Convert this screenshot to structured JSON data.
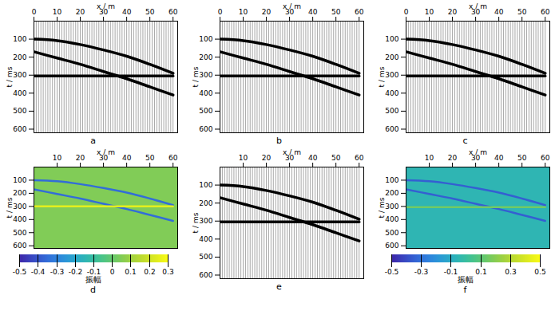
{
  "chart_data": [
    {
      "type": "line",
      "title": "a",
      "x_label": "x / m",
      "y_label": "t / ms",
      "xlim": [
        0,
        62
      ],
      "xticks": [
        0,
        10,
        20,
        30,
        40,
        50,
        60
      ],
      "ylim": [
        0,
        620
      ],
      "yticks": [
        100,
        200,
        300,
        400,
        500,
        600
      ],
      "traces": [
        0,
        1,
        2,
        3,
        4,
        5,
        6,
        7,
        8,
        9,
        10,
        11,
        12,
        13,
        14,
        15,
        16,
        17,
        18,
        19,
        20,
        21,
        22,
        23,
        24,
        25,
        26,
        27,
        28,
        29,
        30,
        31,
        32,
        33,
        34,
        35,
        36,
        37,
        38,
        39,
        40,
        41,
        42,
        43,
        44,
        45,
        46,
        47,
        48,
        49,
        50,
        51,
        52,
        53,
        54,
        55,
        56,
        57,
        58,
        59,
        60
      ],
      "x": [
        0,
        10,
        20,
        30,
        40,
        50,
        60
      ],
      "series": [
        {
          "values": [
            100,
            108,
            130,
            160,
            195,
            240,
            290
          ],
          "color": "#000000"
        },
        {
          "values": [
            170,
            205,
            240,
            280,
            320,
            365,
            410
          ],
          "color": "#000000"
        },
        {
          "values": [
            305,
            305,
            305,
            305,
            305,
            305,
            305
          ],
          "color": "#000000"
        }
      ]
    },
    {
      "type": "line",
      "title": "b",
      "x_label": "x / m",
      "y_label": "t / ms",
      "xlim": [
        0,
        62
      ],
      "xticks": [
        0,
        10,
        20,
        30,
        40,
        50,
        60
      ],
      "ylim": [
        0,
        620
      ],
      "yticks": [
        100,
        200,
        300,
        400,
        500,
        600
      ],
      "traces": [
        0,
        1,
        2,
        3,
        4,
        5,
        6,
        7,
        8,
        9,
        10,
        11,
        12,
        13,
        14,
        15,
        16,
        17,
        18,
        19,
        20,
        21,
        22,
        23,
        24,
        25,
        26,
        27,
        28,
        29,
        30,
        31,
        32,
        33,
        34,
        35,
        36,
        37,
        38,
        39,
        40,
        41,
        42,
        43,
        44,
        45,
        46,
        47,
        48,
        49,
        50,
        51,
        52,
        53,
        54,
        55,
        56,
        57,
        58,
        59,
        60
      ],
      "x": [
        0,
        10,
        20,
        30,
        40,
        50,
        60
      ],
      "series": [
        {
          "values": [
            100,
            108,
            130,
            160,
            195,
            240,
            290
          ],
          "color": "#000000"
        },
        {
          "values": [
            170,
            205,
            240,
            280,
            320,
            365,
            410
          ],
          "color": "#000000"
        },
        {
          "values": [
            305,
            305,
            305,
            305,
            305,
            305,
            305
          ],
          "color": "#000000"
        }
      ]
    },
    {
      "type": "line",
      "title": "c",
      "x_label": "x / m",
      "y_label": "t / ms",
      "xlim": [
        0,
        62
      ],
      "xticks": [
        0,
        10,
        20,
        30,
        40,
        50,
        60
      ],
      "ylim": [
        0,
        620
      ],
      "yticks": [
        100,
        200,
        300,
        400,
        500,
        600
      ],
      "traces": [
        0,
        1,
        2,
        3,
        4,
        5,
        6,
        7,
        8,
        9,
        10,
        11,
        12,
        13,
        14,
        15,
        16,
        17,
        18,
        19,
        20,
        21,
        22,
        23,
        24,
        25,
        26,
        27,
        28,
        29,
        30,
        31,
        32,
        33,
        34,
        35,
        36,
        37,
        38,
        39,
        40,
        41,
        42,
        43,
        44,
        45,
        46,
        47,
        48,
        49,
        50,
        51,
        52,
        53,
        54,
        55,
        56,
        57,
        58,
        59,
        60
      ],
      "x": [
        0,
        10,
        20,
        30,
        40,
        50,
        60
      ],
      "series": [
        {
          "values": [
            100,
            108,
            130,
            160,
            195,
            240,
            290
          ],
          "color": "#000000"
        },
        {
          "values": [
            170,
            205,
            240,
            280,
            320,
            365,
            410
          ],
          "color": "#000000"
        },
        {
          "values": [
            305,
            305,
            305,
            305,
            305,
            305,
            305
          ],
          "color": "#000000"
        }
      ]
    },
    {
      "type": "heatmap",
      "title": "d",
      "x_label": "x / m",
      "y_label": "t / ms",
      "xlim": [
        0,
        62
      ],
      "xticks": [
        10,
        20,
        30,
        40,
        50,
        60
      ],
      "ylim": [
        0,
        620
      ],
      "yticks": [
        100,
        200,
        300,
        400,
        500,
        600
      ],
      "background": 0.05,
      "x": [
        0,
        10,
        20,
        30,
        40,
        50,
        60
      ],
      "series": [
        {
          "values": [
            100,
            108,
            130,
            160,
            195,
            240,
            290
          ],
          "amplitude": -0.35
        },
        {
          "values": [
            170,
            205,
            240,
            280,
            320,
            365,
            410
          ],
          "amplitude": -0.35
        },
        {
          "values": [
            300,
            300,
            300,
            300,
            300,
            300,
            300
          ],
          "amplitude": 0.25
        }
      ],
      "colorbar": {
        "label": "振幅",
        "range": [
          -0.5,
          0.3
        ],
        "ticks": [
          -0.5,
          -0.4,
          -0.3,
          -0.2,
          -0.1,
          0,
          0.1,
          0.2,
          0.3
        ]
      }
    },
    {
      "type": "line",
      "title": "e",
      "x_label": "x / m",
      "y_label": "t / ms",
      "xlim": [
        0,
        62
      ],
      "xticks": [
        10,
        20,
        30,
        40,
        50,
        60
      ],
      "ylim": [
        0,
        620
      ],
      "yticks": [
        100,
        200,
        300,
        400,
        500,
        600
      ],
      "traces": [
        0,
        1,
        2,
        3,
        4,
        5,
        6,
        7,
        8,
        9,
        10,
        11,
        12,
        13,
        14,
        15,
        16,
        17,
        18,
        19,
        20,
        21,
        22,
        23,
        24,
        25,
        26,
        27,
        28,
        29,
        30,
        31,
        32,
        33,
        34,
        35,
        36,
        37,
        38,
        39,
        40,
        41,
        42,
        43,
        44,
        45,
        46,
        47,
        48,
        49,
        50,
        51,
        52,
        53,
        54,
        55,
        56,
        57,
        58,
        59,
        60
      ],
      "x": [
        0,
        10,
        20,
        30,
        40,
        50,
        60
      ],
      "series": [
        {
          "values": [
            100,
            108,
            130,
            160,
            195,
            240,
            290
          ],
          "color": "#000000"
        },
        {
          "values": [
            170,
            205,
            240,
            280,
            320,
            365,
            410
          ],
          "color": "#000000"
        },
        {
          "values": [
            305,
            305,
            305,
            305,
            305,
            305,
            305
          ],
          "color": "#000000"
        }
      ]
    },
    {
      "type": "heatmap",
      "title": "f",
      "x_label": "x / m",
      "y_label": "t / ms",
      "xlim": [
        0,
        62
      ],
      "xticks": [
        10,
        20,
        30,
        40,
        50,
        60
      ],
      "ylim": [
        0,
        620
      ],
      "yticks": [
        100,
        200,
        300,
        400,
        500,
        600
      ],
      "background": -0.05,
      "x": [
        0,
        10,
        20,
        30,
        40,
        50,
        60
      ],
      "series": [
        {
          "values": [
            100,
            108,
            130,
            160,
            195,
            240,
            290
          ],
          "amplitude": -0.35
        },
        {
          "values": [
            170,
            205,
            240,
            280,
            320,
            365,
            410
          ],
          "amplitude": -0.35
        },
        {
          "values": [
            305,
            305,
            305,
            305,
            305,
            305,
            305
          ],
          "amplitude": 0.15
        }
      ],
      "colorbar": {
        "label": "振幅",
        "range": [
          -0.5,
          0.5
        ],
        "ticks": [
          -0.5,
          -0.3,
          -0.1,
          0.1,
          0.3,
          0.5
        ]
      }
    }
  ]
}
